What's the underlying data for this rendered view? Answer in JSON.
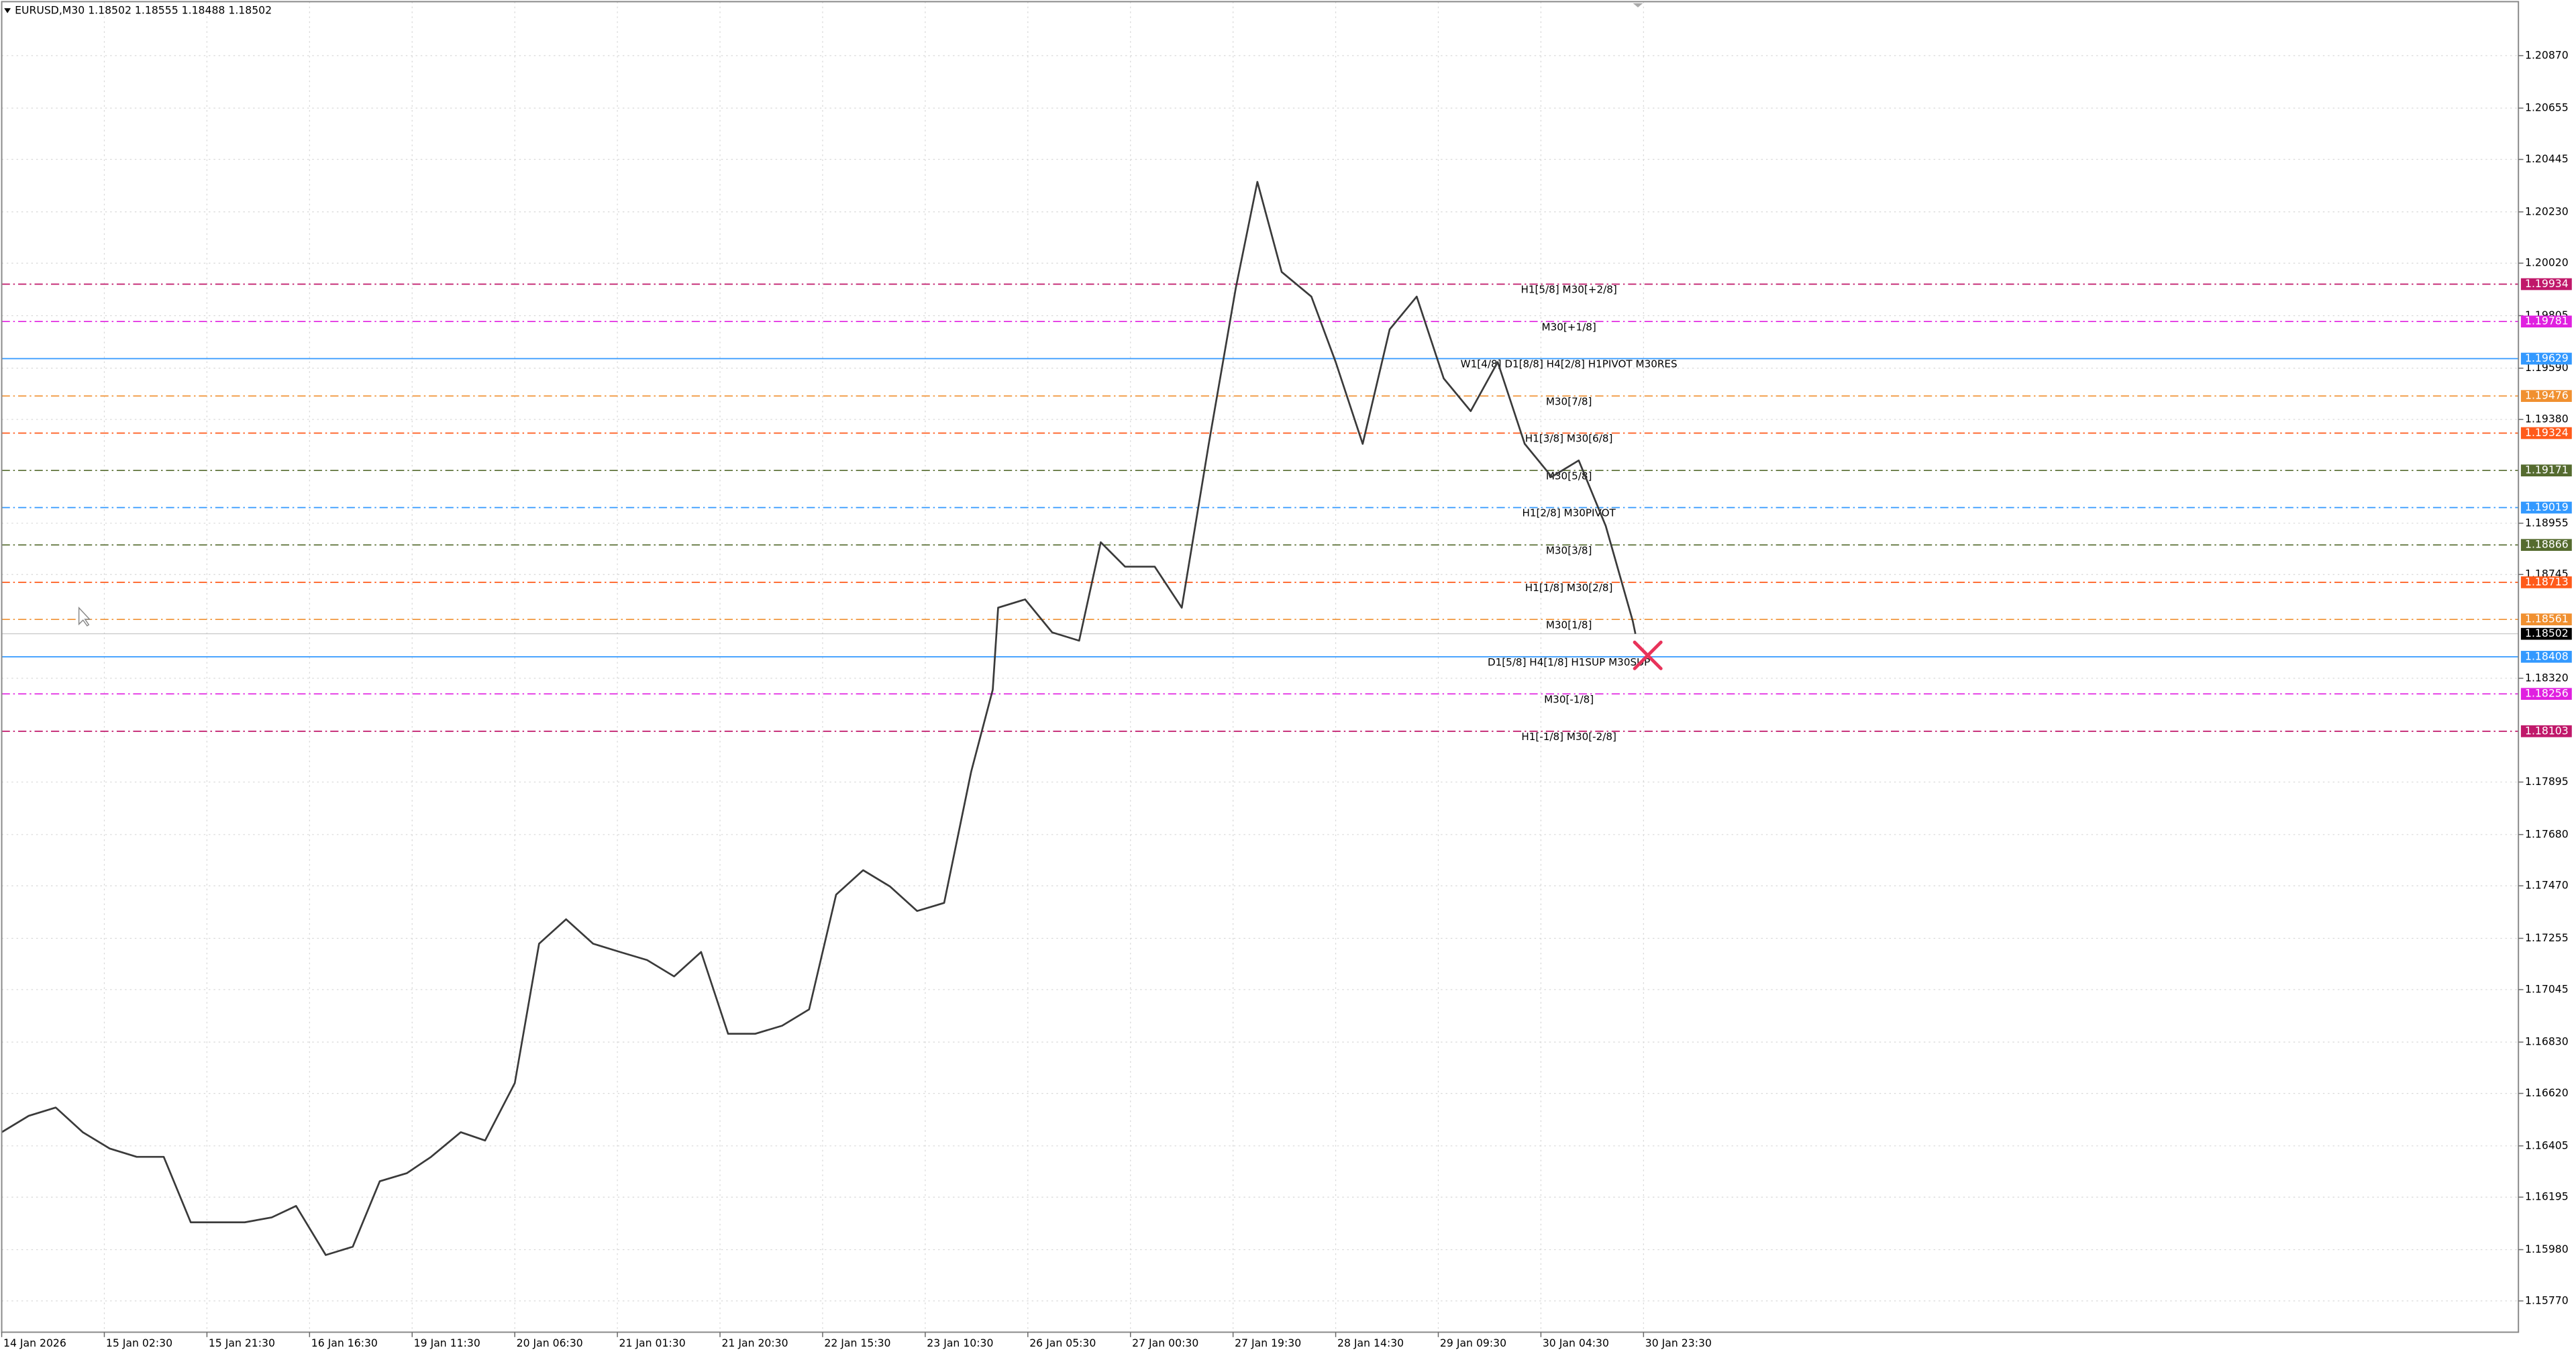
{
  "chart_data": {
    "type": "line",
    "title": "EURUSD,M30  1.18502 1.18555 1.18488 1.18502",
    "x": [
      0,
      10,
      20,
      30,
      40,
      50,
      60,
      70,
      80,
      90,
      100,
      109,
      120,
      130,
      140,
      150,
      159,
      170,
      179,
      190,
      199,
      209,
      219,
      229,
      239,
      249,
      259,
      269,
      279,
      289,
      299,
      309,
      319,
      329,
      339,
      349,
      359,
      367,
      369,
      379,
      389,
      399,
      407,
      416,
      427,
      437,
      447,
      457,
      465,
      474,
      485,
      494,
      504,
      514,
      524,
      534,
      544,
      554,
      564,
      574,
      584,
      594,
      604,
      605
    ],
    "values": [
      1.16461,
      1.16528,
      1.16562,
      1.16461,
      1.16394,
      1.1636,
      1.1636,
      1.16092,
      1.16092,
      1.16092,
      1.16112,
      1.16159,
      1.15958,
      1.15992,
      1.1626,
      1.16293,
      1.1636,
      1.16461,
      1.16427,
      1.16662,
      1.17233,
      1.17333,
      1.17233,
      1.17199,
      1.17166,
      1.17099,
      1.17199,
      1.16864,
      1.16864,
      1.16897,
      1.16964,
      1.17434,
      1.17534,
      1.17467,
      1.17367,
      1.174,
      1.17937,
      1.18273,
      1.18609,
      1.18643,
      1.18508,
      1.18474,
      1.18877,
      1.18777,
      1.18777,
      1.18609,
      1.1928,
      1.19918,
      1.20353,
      1.19984,
      1.19883,
      1.19615,
      1.1928,
      1.19749,
      1.19883,
      1.19548,
      1.19414,
      1.19615,
      1.1928,
      1.19145,
      1.19212,
      1.18944,
      1.18555,
      1.18502
    ],
    "color": "#3a3a3a",
    "xlim": [
      0,
      932
    ],
    "xticks": [
      {
        "value": 0,
        "label": "14 Jan 2026"
      },
      {
        "value": 38,
        "label": "15 Jan 02:30"
      },
      {
        "value": 76,
        "label": "15 Jan 21:30"
      },
      {
        "value": 114,
        "label": "16 Jan 16:30"
      },
      {
        "value": 152,
        "label": "19 Jan 11:30"
      },
      {
        "value": 190,
        "label": "20 Jan 06:30"
      },
      {
        "value": 228,
        "label": "21 Jan 01:30"
      },
      {
        "value": 266,
        "label": "21 Jan 20:30"
      },
      {
        "value": 304,
        "label": "22 Jan 15:30"
      },
      {
        "value": 342,
        "label": "23 Jan 10:30"
      },
      {
        "value": 380,
        "label": "26 Jan 05:30"
      },
      {
        "value": 418,
        "label": "27 Jan 00:30"
      },
      {
        "value": 456,
        "label": "27 Jan 19:30"
      },
      {
        "value": 494,
        "label": "28 Jan 14:30"
      },
      {
        "value": 532,
        "label": "29 Jan 09:30"
      },
      {
        "value": 570,
        "label": "30 Jan 04:30"
      },
      {
        "value": 608,
        "label": "30 Jan 23:30"
      }
    ],
    "ylim": [
      1.15642,
      1.21091
    ],
    "yticks": [
      {
        "value": 1.2087,
        "label": "1.20870"
      },
      1.20655,
      1.20445,
      {
        "value": 1.2023,
        "label": "1.20230"
      },
      {
        "value": 1.2002,
        "label": "1.20020"
      },
      1.19805,
      {
        "value": 1.1959,
        "label": "1.19590"
      },
      {
        "value": 1.1938,
        "label": "1.19380"
      },
      1.18955,
      1.18745,
      {
        "value": 1.1832,
        "label": "1.18320"
      },
      1.17895,
      {
        "value": 1.1768,
        "label": "1.17680"
      },
      {
        "value": 1.1747,
        "label": "1.17470"
      },
      1.17255,
      1.17045,
      {
        "value": 1.1683,
        "label": "1.16830"
      },
      {
        "value": 1.1662,
        "label": "1.16620"
      },
      1.16405,
      1.16195,
      {
        "value": 1.1598,
        "label": "1.15980"
      },
      {
        "value": 1.1577,
        "label": "1.15770"
      }
    ],
    "grid": true,
    "levels": [
      {
        "value": 1.19934,
        "label": "H1[5/8] M30[+2/8]",
        "color": "#c0186a",
        "style": "dashdot"
      },
      {
        "value": 1.19781,
        "label": "M30[+1/8]",
        "color": "#e020e0",
        "style": "dashdot"
      },
      {
        "value": 1.19629,
        "label": "W1[4/8] D1[8/8] H4[2/8] H1PIVOT M30RES",
        "color": "#3399ff",
        "style": "solid"
      },
      {
        "value": 1.19476,
        "label": "M30[7/8]",
        "color": "#f09030",
        "style": "dashdot"
      },
      {
        "value": 1.19324,
        "label": "H1[3/8] M30[6/8]",
        "color": "#ff5a1a",
        "style": "dashdot"
      },
      {
        "value": 1.19171,
        "label": "M30[5/8]",
        "color": "#556b2f",
        "style": "dashdot"
      },
      {
        "value": 1.19019,
        "label": "H1[2/8] M30PIVOT",
        "color": "#3399ff",
        "style": "dashdot"
      },
      {
        "value": 1.18866,
        "label": "M30[3/8]",
        "color": "#556b2f",
        "style": "dashdot"
      },
      {
        "value": 1.18713,
        "label": "H1[1/8] M30[2/8]",
        "color": "#ff5a1a",
        "style": "dashdot"
      },
      {
        "value": 1.18561,
        "label": "M30[1/8]",
        "color": "#f09030",
        "style": "dashdot"
      },
      {
        "value": 1.18408,
        "label": "D1[5/8] H4[1/8] H1SUP M30SUP",
        "color": "#3399ff",
        "style": "solid"
      },
      {
        "value": 1.18256,
        "label": "M30[-1/8]",
        "color": "#e020e0",
        "style": "dashdot"
      },
      {
        "value": 1.18103,
        "label": "H1[-1/8] M30[-2/8]",
        "color": "#c0186a",
        "style": "dashdot"
      }
    ],
    "last_price": 1.18502
  }
}
